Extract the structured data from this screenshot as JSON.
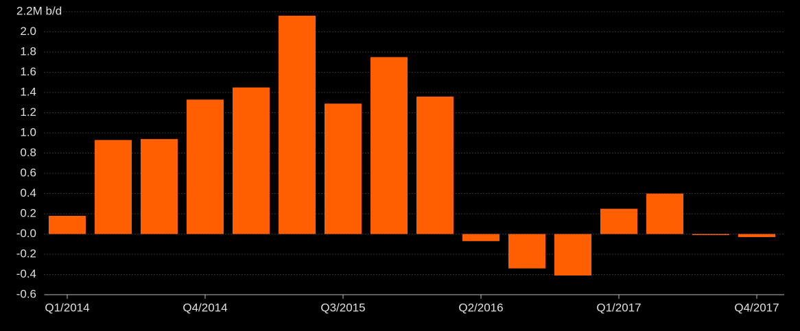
{
  "chart_data": {
    "type": "bar",
    "categories": [
      "Q1/2014",
      null,
      null,
      "Q4/2014",
      null,
      null,
      "Q3/2015",
      null,
      null,
      "Q2/2016",
      null,
      null,
      "Q1/2017",
      null,
      null,
      "Q4/2017"
    ],
    "values": [
      0.18,
      0.93,
      0.94,
      1.33,
      1.45,
      2.16,
      1.29,
      1.75,
      1.36,
      -0.07,
      -0.34,
      -0.41,
      0.25,
      0.4,
      -0.01,
      -0.03
    ],
    "color": "#ff5f00",
    "ylim": [
      -0.6,
      2.2
    ],
    "yticks": [
      {
        "value": 2.2,
        "label": "2.2M b/d"
      },
      {
        "value": 2.0,
        "label": "2.0"
      },
      1.8,
      1.6,
      1.4,
      1.2,
      {
        "value": 1.0,
        "label": "1.0"
      },
      0.8,
      0.6,
      0.4,
      0.2,
      {
        "value": 0,
        "label": "-0.0"
      },
      -0.2,
      -0.4,
      -0.6
    ],
    "grid": true
  }
}
